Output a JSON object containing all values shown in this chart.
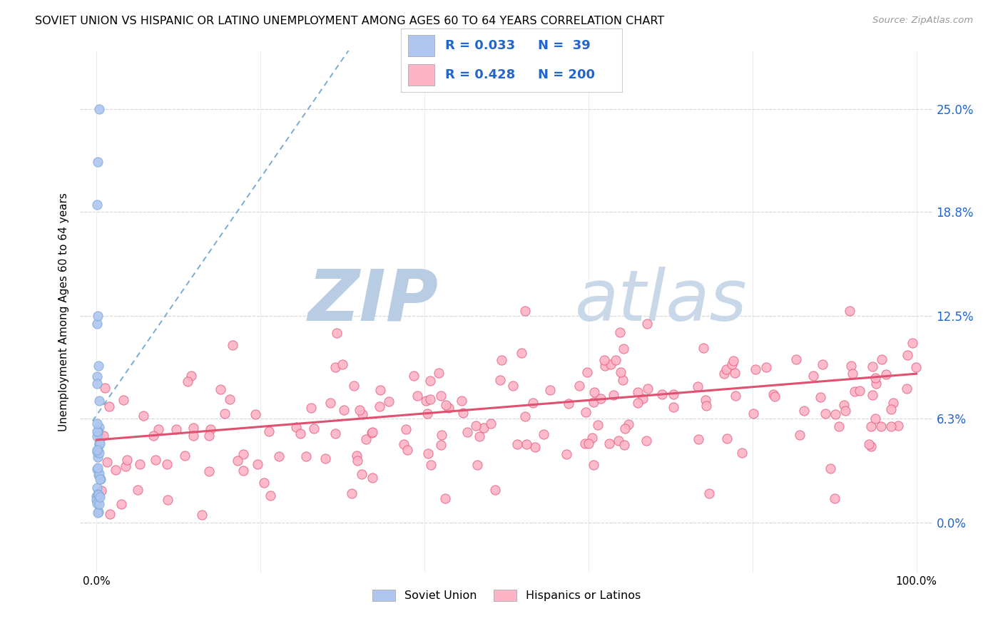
{
  "title": "SOVIET UNION VS HISPANIC OR LATINO UNEMPLOYMENT AMONG AGES 60 TO 64 YEARS CORRELATION CHART",
  "source": "Source: ZipAtlas.com",
  "ylabel": "Unemployment Among Ages 60 to 64 years",
  "background_color": "#ffffff",
  "watermark_zip": "ZIP",
  "watermark_atlas": "atlas",
  "watermark_zip_color": "#b8cce4",
  "watermark_atlas_color": "#c8d8e8",
  "soviet_fill_color": "#aec6f0",
  "soviet_edge_color": "#7baad4",
  "hispanic_fill_color": "#ffb3c6",
  "hispanic_edge_color": "#e06080",
  "soviet_line_color": "#7baad4",
  "hispanic_line_color": "#e05070",
  "R_soviet": 0.033,
  "N_soviet": 39,
  "R_hispanic": 0.428,
  "N_hispanic": 200,
  "legend_label_soviet": "Soviet Union",
  "legend_label_hispanic": "Hispanics or Latinos",
  "title_fontsize": 11.5,
  "legend_fontsize": 13,
  "grid_color": "#cccccc",
  "right_tick_color": "#2266cc",
  "xlim": [
    -0.02,
    1.02
  ],
  "ylim": [
    -0.03,
    0.285
  ],
  "ytick_vals": [
    0.0,
    0.063,
    0.125,
    0.188,
    0.25
  ],
  "ytick_right_labels": [
    "0.0%",
    "6.3%",
    "12.5%",
    "18.8%",
    "25.0%"
  ],
  "xtick_vals": [
    0.0,
    0.2,
    0.4,
    0.6,
    0.8,
    1.0
  ],
  "xtick_labels": [
    "0.0%",
    "",
    "",
    "",
    "",
    "100.0%"
  ]
}
